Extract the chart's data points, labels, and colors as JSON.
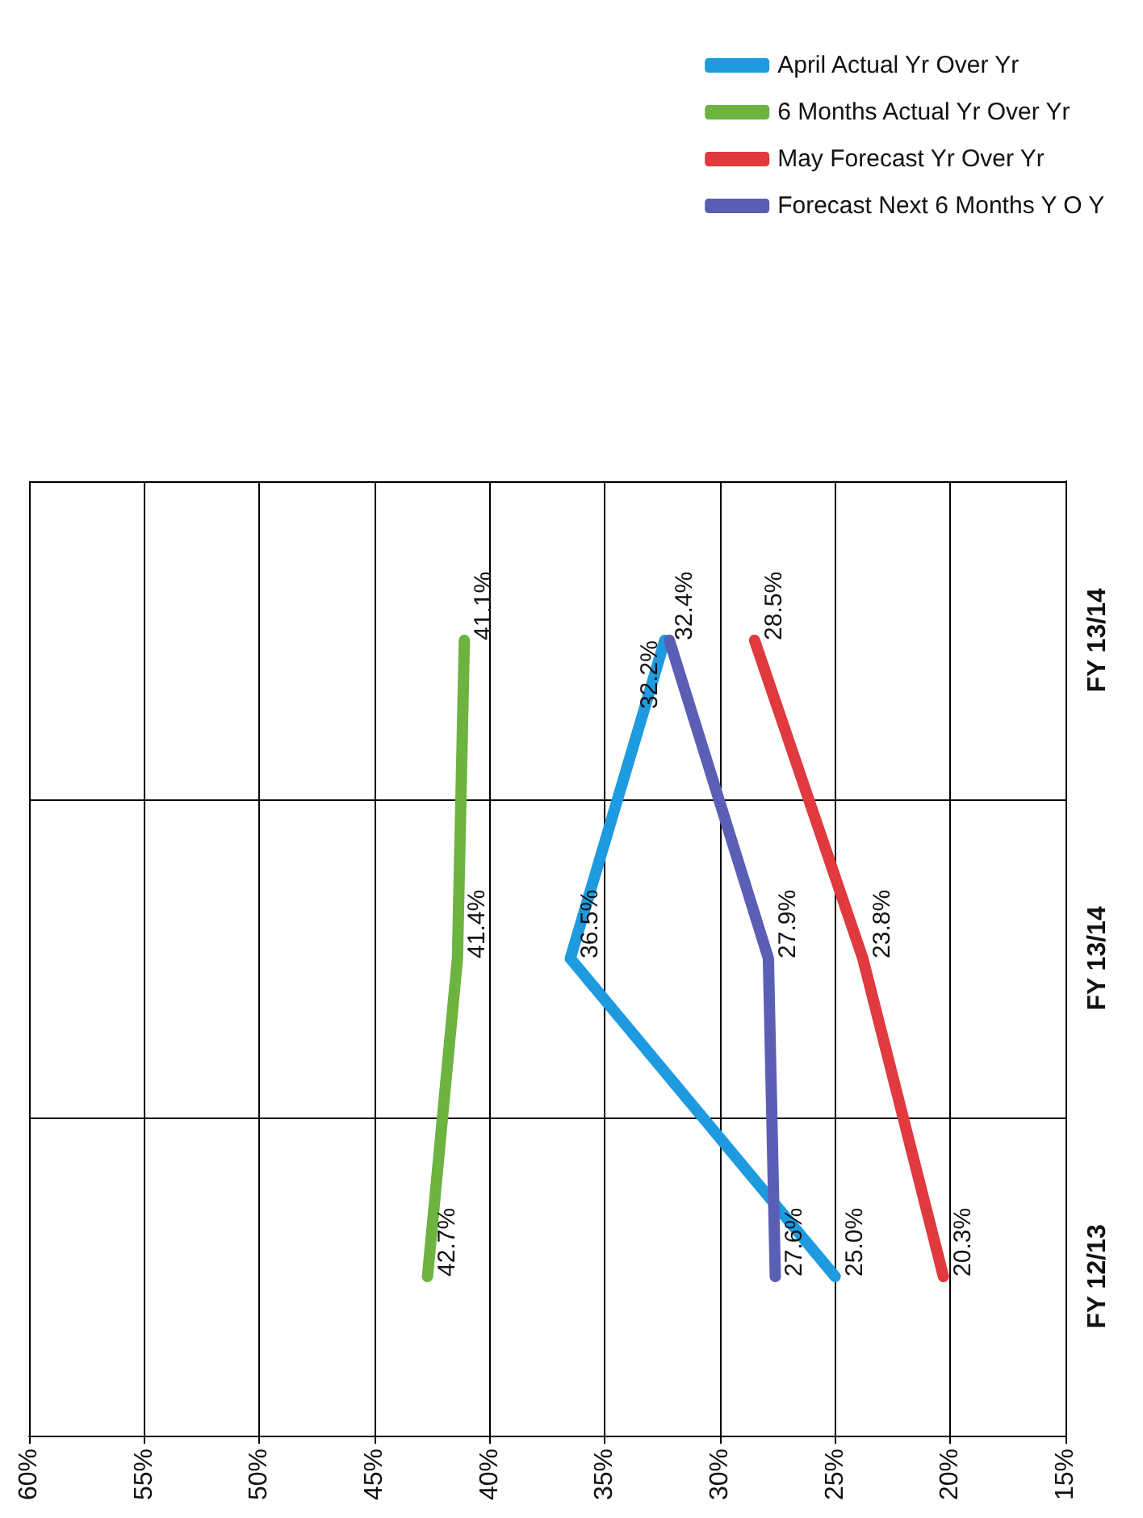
{
  "chart_data": {
    "type": "line",
    "orientation": "horizontal",
    "categories": [
      "FY 13/14",
      "FY 13/14",
      "FY 12/13"
    ],
    "series": [
      {
        "name": "April Actual Yr Over Yr",
        "color": "#1e9be0",
        "values": [
          32.4,
          36.5,
          25.0
        ],
        "value_labels": [
          "32.4%",
          "36.5%",
          "25.0%"
        ]
      },
      {
        "name": "6 Months Actual Yr Over Yr",
        "color": "#6cb33f",
        "values": [
          41.1,
          41.4,
          42.7
        ],
        "value_labels": [
          "41.1%",
          "41.4%",
          "42.7%"
        ]
      },
      {
        "name": "May Forecast Yr Over Yr",
        "color": "#e0393e",
        "values": [
          28.5,
          23.8,
          20.3
        ],
        "value_labels": [
          "28.5%",
          "23.8%",
          "20.3%"
        ]
      },
      {
        "name": "Forecast Next 6 Months Y O Y",
        "color": "#5a5fb5",
        "values": [
          32.2,
          27.9,
          27.6
        ],
        "value_labels": [
          "32.2%",
          "27.9%",
          "27.6%"
        ]
      }
    ],
    "xlim": [
      60,
      15
    ],
    "xticks": [
      {
        "value": 60,
        "label": "60%"
      },
      {
        "value": 55,
        "label": "55%"
      },
      {
        "value": 50,
        "label": "50%"
      },
      {
        "value": 45,
        "label": "45%"
      },
      {
        "value": 40,
        "label": "40%"
      },
      {
        "value": 35,
        "label": "35%"
      },
      {
        "value": 30,
        "label": "30%"
      },
      {
        "value": 25,
        "label": "25%"
      },
      {
        "value": 20,
        "label": "20%"
      },
      {
        "value": 15,
        "label": "15%"
      }
    ],
    "grid": true,
    "legend": "top right",
    "marker": "none",
    "line_style": "solid"
  }
}
